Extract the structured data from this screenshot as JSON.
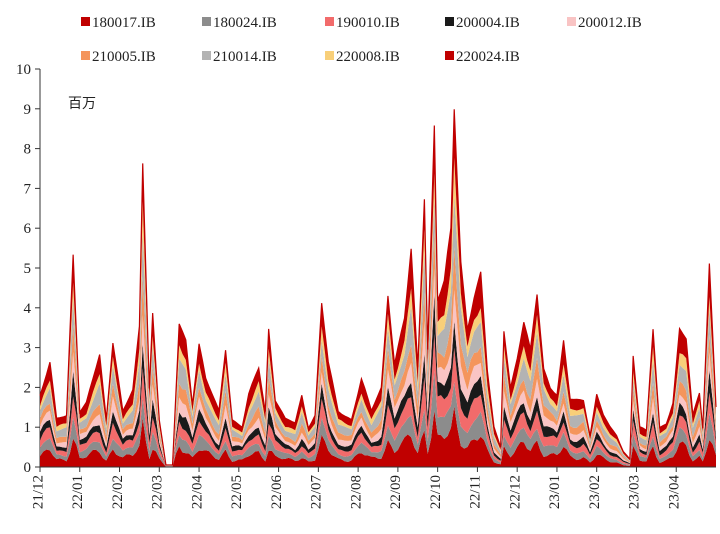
{
  "chart_data": {
    "type": "area",
    "stacked": true,
    "title": "",
    "unit_label": "百万",
    "xlabel": "",
    "ylabel": "",
    "ylim": [
      0,
      10
    ],
    "yticks": [
      0,
      1,
      2,
      3,
      4,
      5,
      6,
      7,
      8,
      9,
      10
    ],
    "x_ticks": [
      "21/12",
      "22/01",
      "22/02",
      "22/03",
      "22/04",
      "22/05",
      "22/06",
      "22/07",
      "22/08",
      "22/09",
      "22/10",
      "22/11",
      "22/12",
      "23/01",
      "23/02",
      "23/03",
      "23/04"
    ],
    "legend_position": "top",
    "series": [
      {
        "name": "180017.IB",
        "color": "#c00000"
      },
      {
        "name": "180024.IB",
        "color": "#8c8c8c"
      },
      {
        "name": "190010.IB",
        "color": "#f26b6b"
      },
      {
        "name": "200004.IB",
        "color": "#1a1a1a"
      },
      {
        "name": "200012.IB",
        "color": "#f9c4c4"
      },
      {
        "name": "210005.IB",
        "color": "#f4955c"
      },
      {
        "name": "210014.IB",
        "color": "#b3b3b3"
      },
      {
        "name": "220008.IB",
        "color": "#f8cf79"
      },
      {
        "name": "220024.IB",
        "color": "#c00000"
      }
    ],
    "shares": [
      0.15,
      0.1,
      0.1,
      0.09,
      0.09,
      0.1,
      0.14,
      0.08,
      0.15
    ],
    "total_anchors": [
      [
        0,
        1.8
      ],
      [
        3,
        2.6
      ],
      [
        5,
        1.2
      ],
      [
        8,
        1.3
      ],
      [
        10,
        5.4
      ],
      [
        12,
        1.4
      ],
      [
        14,
        1.6
      ],
      [
        18,
        2.8
      ],
      [
        20,
        1.2
      ],
      [
        22,
        3.2
      ],
      [
        25,
        1.4
      ],
      [
        28,
        1.9
      ],
      [
        30,
        3.5
      ],
      [
        31,
        7.7
      ],
      [
        33,
        2.0
      ],
      [
        34,
        3.9
      ],
      [
        36,
        1.2
      ],
      [
        38,
        0.05
      ],
      [
        40,
        0.05
      ],
      [
        42,
        3.6
      ],
      [
        44,
        3.2
      ],
      [
        46,
        1.6
      ],
      [
        48,
        3.1
      ],
      [
        50,
        2.2
      ],
      [
        54,
        1.4
      ],
      [
        56,
        3.0
      ],
      [
        58,
        1.2
      ],
      [
        61,
        1.0
      ],
      [
        63,
        1.8
      ],
      [
        66,
        2.5
      ],
      [
        68,
        1.4
      ],
      [
        69,
        3.5
      ],
      [
        71,
        1.7
      ],
      [
        74,
        1.2
      ],
      [
        77,
        1.1
      ],
      [
        79,
        1.8
      ],
      [
        81,
        1.0
      ],
      [
        83,
        1.3
      ],
      [
        85,
        4.1
      ],
      [
        87,
        2.6
      ],
      [
        90,
        1.4
      ],
      [
        94,
        1.2
      ],
      [
        97,
        2.2
      ],
      [
        100,
        1.4
      ],
      [
        103,
        2.0
      ],
      [
        105,
        4.4
      ],
      [
        107,
        2.6
      ],
      [
        110,
        3.7
      ],
      [
        112,
        5.4
      ],
      [
        114,
        2.5
      ],
      [
        116,
        6.9
      ],
      [
        117,
        3.0
      ],
      [
        119,
        8.6
      ],
      [
        120,
        4.2
      ],
      [
        122,
        4.6
      ],
      [
        124,
        5.9
      ],
      [
        125,
        9.0
      ],
      [
        127,
        5.2
      ],
      [
        129,
        3.5
      ],
      [
        131,
        4.3
      ],
      [
        133,
        4.8
      ],
      [
        135,
        2.4
      ],
      [
        137,
        1.0
      ],
      [
        139,
        0.5
      ],
      [
        140,
        3.5
      ],
      [
        142,
        2.0
      ],
      [
        144,
        2.7
      ],
      [
        146,
        3.6
      ],
      [
        148,
        2.9
      ],
      [
        150,
        4.4
      ],
      [
        152,
        2.5
      ],
      [
        154,
        2.0
      ],
      [
        156,
        1.8
      ],
      [
        158,
        3.1
      ],
      [
        160,
        1.7
      ],
      [
        164,
        1.7
      ],
      [
        166,
        0.8
      ],
      [
        168,
        1.8
      ],
      [
        170,
        1.3
      ],
      [
        172,
        1.0
      ],
      [
        174,
        0.8
      ],
      [
        176,
        0.4
      ],
      [
        178,
        0.2
      ],
      [
        179,
        2.8
      ],
      [
        181,
        1.0
      ],
      [
        183,
        0.9
      ],
      [
        185,
        3.5
      ],
      [
        187,
        1.0
      ],
      [
        189,
        1.1
      ],
      [
        191,
        1.6
      ],
      [
        193,
        3.4
      ],
      [
        195,
        3.2
      ],
      [
        197,
        1.3
      ],
      [
        199,
        1.9
      ],
      [
        200,
        1.0
      ],
      [
        202,
        5.1
      ],
      [
        204,
        1.5
      ]
    ],
    "n_points": 205
  }
}
